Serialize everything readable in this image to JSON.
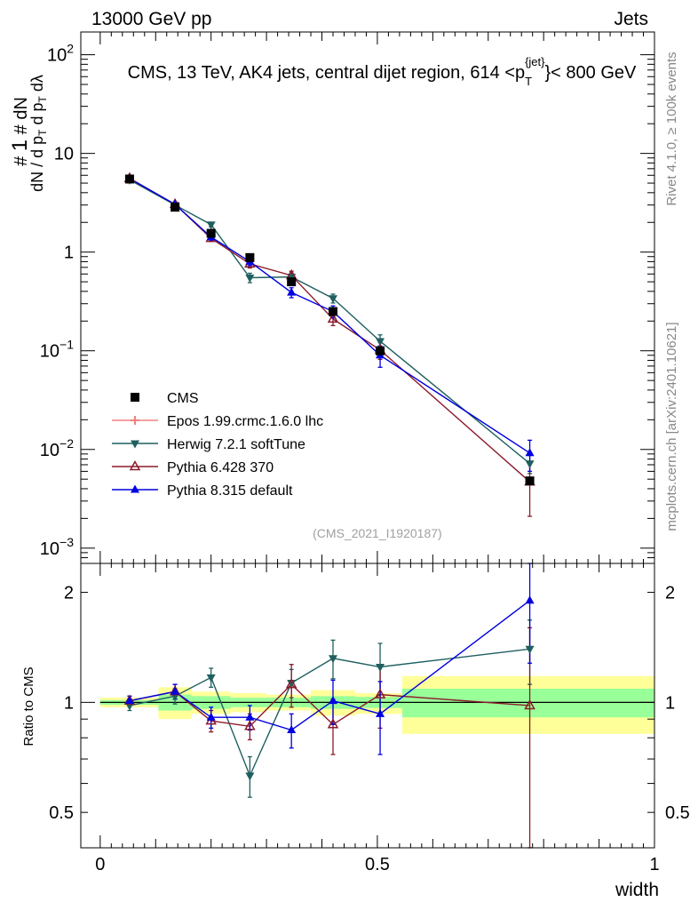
{
  "header": {
    "left": "13000 GeV pp",
    "right": "Jets"
  },
  "side_labels": {
    "rivet": "Rivet 4.1.0, ≥ 100k events",
    "mcplots": "mcplots.cern.ch [arXiv:2401.10621]"
  },
  "colors": {
    "cms": "#000000",
    "epos": "#f08080",
    "herwig": "#1f5f5f",
    "pythia6": "#8b1a2b",
    "pythia8": "#0000e0",
    "band_inner": "#99ff99",
    "band_outer": "#ffff99"
  },
  "chart_data": [
    {
      "type": "scatter",
      "name": "main",
      "title_parts": {
        "main": "CMS, 13 TeV, AK4 jets, central dijet region, 614 <p",
        "sub": "T",
        "sup": "{jet}",
        "tail": "}< 800 GeV"
      },
      "ylabel": "1/dN/dpT dN/dpT dλ",
      "yscale": "log",
      "ylim": [
        0.0007,
        170
      ],
      "xlim": [
        -0.035,
        1.0
      ],
      "y_ticks": [
        {
          "v": 0.001,
          "base": "10",
          "exp": "−3"
        },
        {
          "v": 0.01,
          "base": "10",
          "exp": "−2"
        },
        {
          "v": 0.1,
          "base": "10",
          "exp": "−1"
        },
        {
          "v": 1,
          "label": "1"
        },
        {
          "v": 10,
          "label": "10"
        },
        {
          "v": 100,
          "base": "10",
          "exp": "2"
        }
      ],
      "watermark": "(CMS_2021_I1920187)",
      "legend": [
        {
          "key": "cms",
          "label": "CMS"
        },
        {
          "key": "epos",
          "label": "Epos 1.99.crmc.1.6.0 lhc"
        },
        {
          "key": "herwig",
          "label": "Herwig 7.2.1 softTune"
        },
        {
          "key": "pythia6",
          "label": "Pythia 6.428 370"
        },
        {
          "key": "pythia8",
          "label": "Pythia 8.315 default"
        }
      ],
      "x": [
        0.053,
        0.135,
        0.2,
        0.27,
        0.345,
        0.42,
        0.505,
        0.775
      ],
      "cms": {
        "y": [
          5.5,
          2.85,
          1.55,
          0.88,
          0.5,
          0.25,
          0.1,
          0.0048
        ]
      },
      "series": [
        {
          "key": "herwig",
          "marker": "triangle-down",
          "y": [
            5.4,
            3.0,
            1.9,
            0.55,
            0.56,
            0.34,
            0.125,
            0.0072
          ],
          "err": [
            0.2,
            0.15,
            0.1,
            0.06,
            0.05,
            0.035,
            0.02,
            0.0015
          ]
        },
        {
          "key": "pythia6",
          "marker": "triangle-open",
          "y": [
            5.6,
            3.05,
            1.38,
            0.76,
            0.58,
            0.21,
            0.102,
            0.0047
          ],
          "err": [
            0.2,
            0.15,
            0.1,
            0.07,
            0.06,
            0.03,
            0.02,
            0.0026
          ]
        },
        {
          "key": "pythia8",
          "marker": "triangle-up",
          "y": [
            5.55,
            3.05,
            1.42,
            0.8,
            0.39,
            0.25,
            0.09,
            0.0092
          ],
          "err": [
            0.2,
            0.15,
            0.1,
            0.07,
            0.045,
            0.035,
            0.022,
            0.0032
          ]
        }
      ]
    },
    {
      "type": "scatter",
      "name": "ratio",
      "ylabel": "Ratio to CMS",
      "yscale": "log",
      "ylim": [
        0.4,
        2.4
      ],
      "xlim": [
        -0.035,
        1.0
      ],
      "xlabel": "width",
      "x_ticks": [
        {
          "v": 0,
          "label": "0"
        },
        {
          "v": 0.5,
          "label": "0.5"
        },
        {
          "v": 1,
          "label": "1"
        }
      ],
      "y_ticks": [
        {
          "v": 0.5,
          "label": "0.5"
        },
        {
          "v": 1,
          "label": "1"
        },
        {
          "v": 2,
          "label": "2"
        }
      ],
      "bands": [
        {
          "x0": 0.0,
          "x1": 0.105,
          "inner": [
            0.985,
            1.015
          ],
          "outer": [
            0.97,
            1.03
          ]
        },
        {
          "x0": 0.105,
          "x1": 0.165,
          "inner": [
            0.95,
            1.05
          ],
          "outer": [
            0.9,
            1.1
          ]
        },
        {
          "x0": 0.165,
          "x1": 0.235,
          "inner": [
            0.96,
            1.04
          ],
          "outer": [
            0.93,
            1.07
          ]
        },
        {
          "x0": 0.235,
          "x1": 0.3,
          "inner": [
            0.97,
            1.03
          ],
          "outer": [
            0.94,
            1.06
          ]
        },
        {
          "x0": 0.3,
          "x1": 0.38,
          "inner": [
            0.97,
            1.03
          ],
          "outer": [
            0.95,
            1.05
          ]
        },
        {
          "x0": 0.38,
          "x1": 0.46,
          "inner": [
            0.96,
            1.04
          ],
          "outer": [
            0.92,
            1.08
          ]
        },
        {
          "x0": 0.46,
          "x1": 0.545,
          "inner": [
            0.965,
            1.035
          ],
          "outer": [
            0.93,
            1.06
          ]
        },
        {
          "x0": 0.545,
          "x1": 1.0,
          "inner": [
            0.91,
            1.09
          ],
          "outer": [
            0.82,
            1.18
          ]
        }
      ],
      "x": [
        0.053,
        0.135,
        0.2,
        0.27,
        0.345,
        0.42,
        0.505,
        0.775
      ],
      "series": [
        {
          "key": "herwig",
          "marker": "triangle-down",
          "y": [
            0.98,
            1.04,
            1.17,
            0.63,
            1.13,
            1.32,
            1.25,
            1.4
          ],
          "err": [
            0.03,
            0.05,
            0.07,
            0.08,
            0.1,
            0.16,
            0.2,
            0.28
          ]
        },
        {
          "key": "pythia6",
          "marker": "triangle-open",
          "y": [
            1.01,
            1.07,
            0.89,
            0.86,
            1.12,
            0.87,
            1.05,
            0.98
          ],
          "err": [
            0.03,
            0.05,
            0.06,
            0.07,
            0.15,
            0.15,
            0.2,
            0.62
          ]
        },
        {
          "key": "pythia8",
          "marker": "triangle-up",
          "y": [
            1.01,
            1.07,
            0.91,
            0.91,
            0.84,
            1.01,
            0.93,
            1.9
          ],
          "err": [
            0.03,
            0.05,
            0.06,
            0.07,
            0.09,
            0.14,
            0.21,
            0.62
          ]
        }
      ]
    }
  ]
}
